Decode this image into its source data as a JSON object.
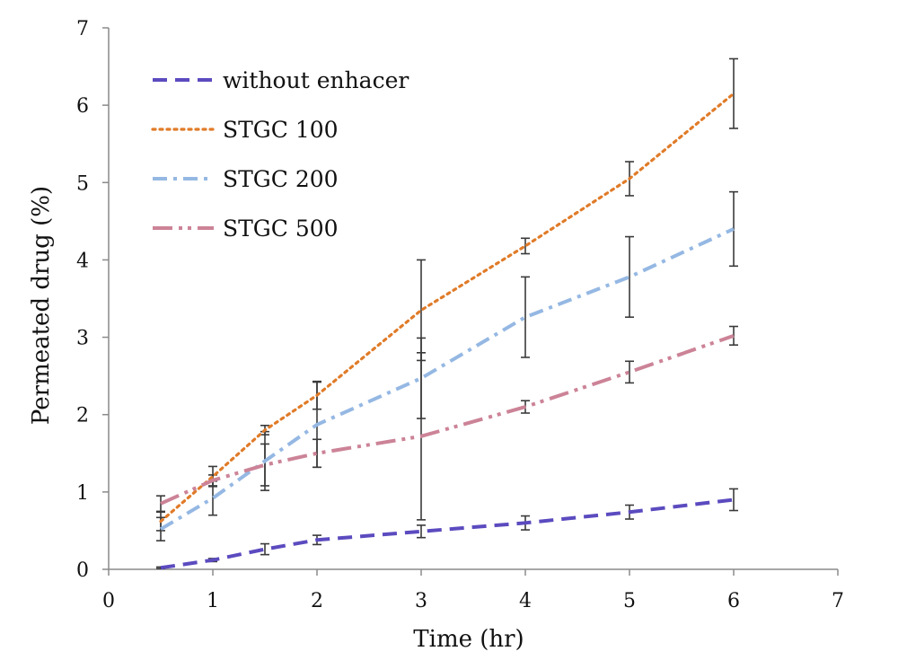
{
  "chart_data": {
    "type": "line",
    "title": "",
    "xlabel": "Time (hr)",
    "ylabel": "Permeated drug (%)",
    "xlim": [
      0,
      7
    ],
    "ylim": [
      0,
      7
    ],
    "xticks": [
      0,
      1,
      2,
      3,
      4,
      5,
      6,
      7
    ],
    "yticks": [
      0,
      1,
      2,
      3,
      4,
      5,
      6,
      7
    ],
    "grid": false,
    "legend_position": "top-left",
    "series": [
      {
        "name": "without enhacer",
        "color": "#5b4bbf",
        "dash": "dashed",
        "x": [
          0.5,
          1,
          1.5,
          2,
          3,
          4,
          5,
          6
        ],
        "y": [
          0.02,
          0.12,
          0.26,
          0.38,
          0.49,
          0.6,
          0.74,
          0.9
        ],
        "err": [
          0.01,
          0.02,
          0.07,
          0.06,
          0.08,
          0.09,
          0.09,
          0.14
        ]
      },
      {
        "name": "STGC 100",
        "color": "#e07b28",
        "dash": "dotted",
        "x": [
          0.5,
          1,
          1.5,
          2,
          3,
          4,
          5,
          6
        ],
        "y": [
          0.62,
          1.2,
          1.8,
          2.25,
          3.35,
          4.18,
          5.05,
          6.15
        ],
        "err": [
          0.12,
          0.13,
          0.06,
          0.18,
          0.65,
          0.1,
          0.22,
          0.45
        ]
      },
      {
        "name": "STGC 200",
        "color": "#95b8e3",
        "dash": "dash-dot",
        "x": [
          0.5,
          1,
          1.5,
          2,
          3,
          4,
          5,
          6
        ],
        "y": [
          0.52,
          0.92,
          1.4,
          1.87,
          2.47,
          3.26,
          3.78,
          4.4
        ],
        "err": [
          0.15,
          0.22,
          0.38,
          0.55,
          0.52,
          0.52,
          0.52,
          0.48
        ]
      },
      {
        "name": "STGC 500",
        "color": "#cc8397",
        "dash": "dash-dot-dot",
        "x": [
          0.5,
          1,
          1.5,
          2,
          3,
          4,
          5,
          6
        ],
        "y": [
          0.85,
          1.15,
          1.35,
          1.5,
          1.72,
          2.1,
          2.55,
          3.02
        ],
        "err": [
          0.1,
          0.07,
          0.27,
          0.18,
          1.08,
          0.08,
          0.14,
          0.12
        ]
      }
    ]
  }
}
